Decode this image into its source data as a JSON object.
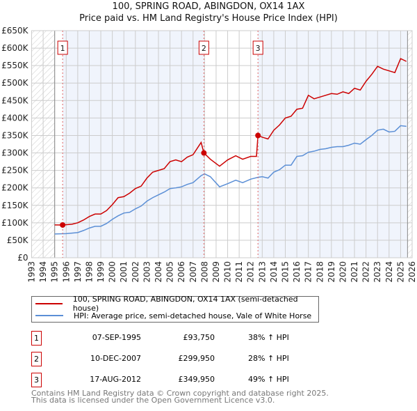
{
  "chart_data": {
    "type": "line",
    "title": "100, SPRING ROAD, ABINGDON, OX14 1AX",
    "subtitle": "Price paid vs. HM Land Registry's House Price Index (HPI)",
    "xlim": [
      1993,
      2026
    ],
    "ylim": [
      0,
      650000
    ],
    "x_ticks": [
      "1993",
      "1994",
      "1995",
      "1996",
      "1997",
      "1998",
      "1999",
      "2000",
      "2001",
      "2002",
      "2003",
      "2004",
      "2005",
      "2006",
      "2007",
      "2008",
      "2009",
      "2010",
      "2011",
      "2012",
      "2013",
      "2014",
      "2015",
      "2016",
      "2017",
      "2018",
      "2019",
      "2020",
      "2021",
      "2022",
      "2023",
      "2024",
      "2025",
      "2026"
    ],
    "y_ticks": [
      {
        "v": 0,
        "label": "£0"
      },
      {
        "v": 50000,
        "label": "£50K"
      },
      {
        "v": 100000,
        "label": "£100K"
      },
      {
        "v": 150000,
        "label": "£150K"
      },
      {
        "v": 200000,
        "label": "£200K"
      },
      {
        "v": 250000,
        "label": "£250K"
      },
      {
        "v": 300000,
        "label": "£300K"
      },
      {
        "v": 350000,
        "label": "£350K"
      },
      {
        "v": 400000,
        "label": "£400K"
      },
      {
        "v": 450000,
        "label": "£450K"
      },
      {
        "v": 500000,
        "label": "£500K"
      },
      {
        "v": 550000,
        "label": "£550K"
      },
      {
        "v": 600000,
        "label": "£600K"
      },
      {
        "v": 650000,
        "label": "£650K"
      }
    ],
    "grid": true,
    "data_range": [
      1995,
      2025.6
    ],
    "series": [
      {
        "name": "100, SPRING ROAD, ABINGDON, OX14 1AX (semi-detached house)",
        "color": "#cc0000",
        "x": [
          1995,
          1995.7,
          1996.5,
          1997,
          1997.5,
          1998,
          1998.5,
          1999,
          1999.5,
          2000,
          2000.5,
          2001,
          2001.5,
          2002,
          2002.5,
          2003,
          2003.5,
          2004,
          2004.5,
          2005,
          2005.5,
          2006,
          2006.5,
          2007,
          2007.7,
          2007.94,
          2008.5,
          2009.3,
          2010,
          2010.7,
          2011.3,
          2012,
          2012.5,
          2012.63,
          2013,
          2013.5,
          2014,
          2014.5,
          2015,
          2015.5,
          2016,
          2016.5,
          2017,
          2017.5,
          2018,
          2018.5,
          2019,
          2019.5,
          2020,
          2020.5,
          2021,
          2021.5,
          2022,
          2022.5,
          2023,
          2023.5,
          2024,
          2024.5,
          2025,
          2025.5
        ],
        "y": [
          94000,
          93750,
          96000,
          100000,
          108000,
          118000,
          125000,
          125000,
          135000,
          152000,
          172000,
          175000,
          185000,
          198000,
          205000,
          228000,
          245000,
          250000,
          255000,
          275000,
          280000,
          275000,
          288000,
          295000,
          330000,
          299950,
          282000,
          262000,
          280000,
          292000,
          282000,
          290000,
          290000,
          349950,
          345000,
          340000,
          365000,
          380000,
          400000,
          405000,
          425000,
          428000,
          465000,
          455000,
          460000,
          465000,
          470000,
          468000,
          475000,
          470000,
          485000,
          480000,
          505000,
          525000,
          548000,
          540000,
          535000,
          530000,
          570000,
          562000
        ]
      },
      {
        "name": "HPI: Average price, semi-detached house, Vale of White Horse",
        "color": "#5b8fd6",
        "x": [
          1995,
          1996,
          1997,
          1997.5,
          1998,
          1998.5,
          1999,
          1999.5,
          2000,
          2000.5,
          2001,
          2001.5,
          2002,
          2002.5,
          2003,
          2003.5,
          2004,
          2004.5,
          2005,
          2005.5,
          2006,
          2006.5,
          2007,
          2007.7,
          2008,
          2008.5,
          2009.3,
          2010,
          2010.7,
          2011.3,
          2012,
          2012.6,
          2013,
          2013.5,
          2014,
          2014.5,
          2015,
          2015.5,
          2016,
          2016.5,
          2017,
          2017.5,
          2018,
          2018.5,
          2019,
          2019.5,
          2020,
          2020.5,
          2021,
          2021.5,
          2022,
          2022.5,
          2023,
          2023.5,
          2024,
          2024.5,
          2025,
          2025.5
        ],
        "y": [
          68000,
          69000,
          72000,
          78000,
          85000,
          90000,
          90000,
          98000,
          110000,
          120000,
          128000,
          130000,
          140000,
          148000,
          162000,
          172000,
          180000,
          188000,
          198000,
          200000,
          203000,
          210000,
          215000,
          235000,
          240000,
          232000,
          203000,
          212000,
          222000,
          215000,
          225000,
          230000,
          232000,
          228000,
          245000,
          252000,
          265000,
          265000,
          290000,
          292000,
          302000,
          305000,
          310000,
          312000,
          316000,
          318000,
          318000,
          322000,
          328000,
          325000,
          338000,
          350000,
          365000,
          368000,
          360000,
          362000,
          378000,
          376000
        ]
      }
    ],
    "sales": [
      {
        "n": "1",
        "x": 1995.69,
        "y": 93750,
        "date": "07-SEP-1995",
        "price": "£93,750",
        "hpi": "38% ↑ HPI"
      },
      {
        "n": "2",
        "x": 2007.94,
        "y": 299950,
        "date": "10-DEC-2007",
        "price": "£299,950",
        "hpi": "28% ↑ HPI"
      },
      {
        "n": "3",
        "x": 2012.63,
        "y": 349950,
        "date": "17-AUG-2012",
        "price": "£349,950",
        "hpi": "49% ↑ HPI"
      }
    ],
    "legend_position": "below"
  },
  "footer": {
    "line1": "Contains HM Land Registry data © Crown copyright and database right 2025.",
    "line2": "This data is licensed under the Open Government Licence v3.0."
  }
}
